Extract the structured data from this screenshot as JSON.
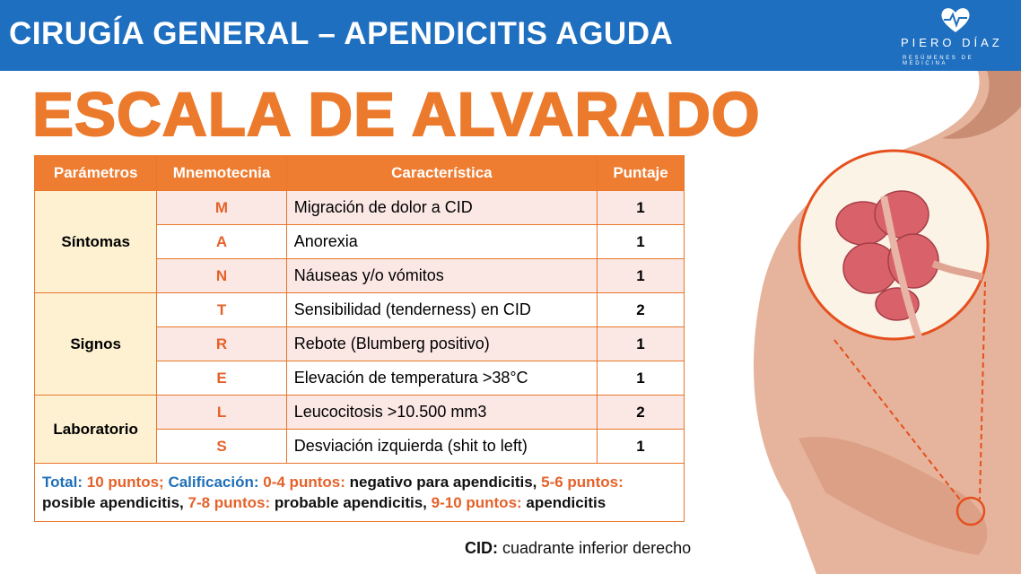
{
  "header": {
    "title": "CIRUGÍA GENERAL – APENDICITIS AGUDA",
    "logo_name": "PIERO DÍAZ",
    "logo_tagline": "RESÚMENES DE MEDICINA"
  },
  "heading": "ESCALA DE ALVARADO",
  "table": {
    "columns": [
      "Parámetros",
      "Mnemotecnia",
      "Característica",
      "Puntaje"
    ],
    "groups": [
      {
        "name": "Síntomas",
        "rows": [
          [
            "M",
            "Migración de dolor a CID",
            1
          ],
          [
            "A",
            "Anorexia",
            1
          ],
          [
            "N",
            "Náuseas y/o vómitos",
            1
          ]
        ]
      },
      {
        "name": "Signos",
        "rows": [
          [
            "T",
            "Sensibilidad (tenderness) en CID",
            2
          ],
          [
            "R",
            "Rebote (Blumberg positivo)",
            1
          ],
          [
            "E",
            "Elevación de temperatura >38°C",
            1
          ]
        ]
      },
      {
        "name": "Laboratorio",
        "rows": [
          [
            "L",
            "Leucocitosis >10.500 mm3",
            2
          ],
          [
            "S",
            "Desviación izquierda (shit to left)",
            1
          ]
        ]
      }
    ],
    "note": [
      {
        "text": "Total:",
        "color": "#1f6fb8"
      },
      {
        "text": "10 puntos;",
        "color": "#e5622a"
      },
      {
        "text": "Calificación:",
        "color": "#1f6fb8"
      },
      {
        "text": "0-4 puntos:",
        "color": "#e5622a"
      },
      {
        "text": "negativo para apendicitis,",
        "color": "#111111"
      },
      {
        "text": "5-6 puntos:",
        "color": "#e5622a"
      },
      {
        "text": "posible apendicitis,",
        "color": "#111111"
      },
      {
        "text": "7-8 puntos:",
        "color": "#e5622a"
      },
      {
        "text": "probable apendicitis,",
        "color": "#111111"
      },
      {
        "text": "9-10 puntos:",
        "color": "#e5622a"
      },
      {
        "text": "apendicitis",
        "color": "#111111"
      }
    ]
  },
  "footnote": {
    "term": "CID:",
    "definition": "cuadrante inferior derecho"
  }
}
